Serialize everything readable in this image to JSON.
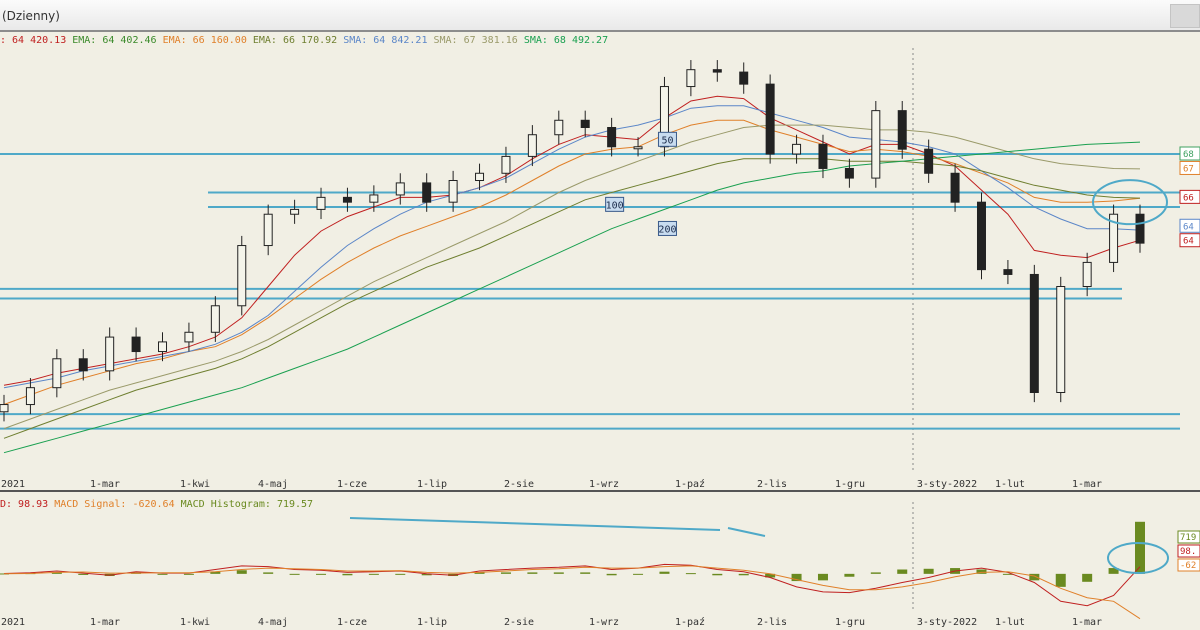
{
  "window": {
    "title": "(Dzienny)"
  },
  "legend_main": [
    {
      "text": ": 64 420.13",
      "color": "#c02020"
    },
    {
      "text": "EMA: 64 402.46",
      "color": "#3a8a2a"
    },
    {
      "text": "EMA: 66 160.00",
      "color": "#e0802a"
    },
    {
      "text": "EMA: 66 170.92",
      "color": "#6f7f30"
    },
    {
      "text": "SMA: 64 842.21",
      "color": "#5b86c8"
    },
    {
      "text": "SMA: 67 381.16",
      "color": "#9a9a6a"
    },
    {
      "text": "SMA: 68 492.27",
      "color": "#1aa050"
    }
  ],
  "legend_macd": [
    {
      "text": "D: 98.93",
      "color": "#c02020"
    },
    {
      "text": "MACD Signal: -620.64",
      "color": "#e0802a"
    },
    {
      "text": "MACD Histogram: 719.57",
      "color": "#6a8a20"
    }
  ],
  "chart_data": {
    "type": "candlestick",
    "time_labels": [
      "-2021",
      "1-mar",
      "1-kwi",
      "4-maj",
      "1-cze",
      "1-lip",
      "2-sie",
      "1-wrz",
      "1-paź",
      "2-lis",
      "1-gru",
      "3-sty-2022",
      "1-lut",
      "1-mar"
    ],
    "price_series": [
      {
        "name": "close",
        "color": "#222222",
        "values": [
          57600,
          58300,
          59500,
          59000,
          60400,
          59800,
          60200,
          60600,
          61700,
          64200,
          65500,
          65700,
          66200,
          66000,
          66300,
          66800,
          66000,
          66900,
          67200,
          67900,
          68800,
          69400,
          69100,
          68300,
          68300,
          70800,
          71500,
          71400,
          70900,
          68000,
          68400,
          67400,
          67000,
          69800,
          68200,
          67200,
          66000,
          63200,
          63000,
          58100,
          62500,
          63500,
          65500,
          64300
        ]
      },
      {
        "name": "EMA 20",
        "color": "#c02020",
        "values": [
          58400,
          58600,
          58900,
          59100,
          59300,
          59500,
          59700,
          60000,
          60400,
          61200,
          62500,
          63800,
          64800,
          65400,
          65800,
          66200,
          66200,
          66300,
          66600,
          67100,
          67800,
          68400,
          68800,
          68700,
          68600,
          69500,
          70200,
          70400,
          70300,
          69500,
          69000,
          68500,
          68000,
          68400,
          68400,
          68000,
          67500,
          66500,
          65500,
          64000,
          63800,
          63700,
          64100,
          64420
        ]
      },
      {
        "name": "EMA 50",
        "color": "#e0802a",
        "values": [
          57600,
          58000,
          58400,
          58700,
          59000,
          59300,
          59500,
          59800,
          60000,
          60500,
          61200,
          62000,
          62800,
          63500,
          64100,
          64600,
          65000,
          65400,
          65800,
          66300,
          66900,
          67500,
          68000,
          68200,
          68300,
          68800,
          69200,
          69400,
          69400,
          69000,
          68700,
          68400,
          68100,
          68200,
          68100,
          67900,
          67600,
          67200,
          66800,
          66200,
          66000,
          66000,
          66050,
          66160
        ]
      },
      {
        "name": "SMA 50",
        "color": "#5b86c8",
        "values": [
          58300,
          58500,
          58700,
          59000,
          59200,
          59400,
          59600,
          59800,
          60100,
          60600,
          61300,
          62300,
          63300,
          64200,
          64900,
          65500,
          66000,
          66300,
          66600,
          67000,
          67600,
          68200,
          68700,
          69000,
          69200,
          69500,
          69900,
          70000,
          70000,
          69700,
          69400,
          69100,
          68700,
          68600,
          68500,
          68300,
          68000,
          67300,
          66600,
          65800,
          65300,
          64900,
          64900,
          64842
        ]
      },
      {
        "name": "EMA 100",
        "color": "#6f7f30",
        "values": [
          56200,
          56600,
          57000,
          57400,
          57800,
          58200,
          58500,
          58800,
          59100,
          59500,
          60000,
          60600,
          61200,
          61800,
          62300,
          62800,
          63300,
          63700,
          64100,
          64600,
          65100,
          65600,
          66100,
          66400,
          66700,
          67000,
          67300,
          67600,
          67800,
          67800,
          67800,
          67800,
          67700,
          67700,
          67700,
          67600,
          67500,
          67300,
          67000,
          66700,
          66500,
          66300,
          66200,
          66171
        ]
      },
      {
        "name": "SMA 100",
        "color": "#9a9a6a",
        "values": [
          56600,
          57000,
          57400,
          57800,
          58200,
          58500,
          58800,
          59100,
          59400,
          59800,
          60300,
          60900,
          61500,
          62100,
          62700,
          63200,
          63700,
          64200,
          64700,
          65200,
          65800,
          66400,
          66900,
          67300,
          67700,
          68100,
          68500,
          68800,
          69100,
          69200,
          69200,
          69200,
          69100,
          69000,
          69000,
          68900,
          68700,
          68400,
          68100,
          67800,
          67600,
          67500,
          67400,
          67381
        ]
      },
      {
        "name": "SMA 200",
        "color": "#1aa050",
        "values": [
          55600,
          55900,
          56200,
          56500,
          56800,
          57100,
          57400,
          57700,
          58000,
          58300,
          58700,
          59100,
          59500,
          59900,
          60400,
          60900,
          61400,
          61900,
          62400,
          62900,
          63400,
          63900,
          64400,
          64900,
          65300,
          65700,
          66100,
          66500,
          66800,
          67000,
          67200,
          67300,
          67500,
          67600,
          67700,
          67800,
          67900,
          68000,
          68100,
          68200,
          68300,
          68400,
          68450,
          68492
        ]
      }
    ],
    "horizontal_levels": [
      68000,
      66400,
      65800,
      62400,
      62000,
      57200,
      56600
    ],
    "annotations": [
      "50",
      "100",
      "200"
    ],
    "right_labels": [
      "68",
      "67",
      "66",
      "64",
      "64"
    ],
    "ylim": [
      54800,
      72400
    ],
    "macd": {
      "macd_line": [
        5,
        15,
        40,
        10,
        -20,
        30,
        10,
        10,
        60,
        110,
        100,
        60,
        50,
        20,
        30,
        40,
        0,
        -20,
        40,
        60,
        80,
        90,
        110,
        60,
        80,
        130,
        120,
        60,
        30,
        -50,
        -180,
        -250,
        -260,
        -200,
        -120,
        -50,
        40,
        80,
        20,
        -120,
        -380,
        -440,
        -300,
        99
      ],
      "signal": [
        0,
        5,
        20,
        25,
        10,
        10,
        15,
        15,
        30,
        60,
        80,
        70,
        60,
        40,
        40,
        45,
        20,
        10,
        20,
        40,
        60,
        70,
        90,
        80,
        80,
        100,
        110,
        80,
        50,
        0,
        -80,
        -160,
        -220,
        -220,
        -180,
        -120,
        -40,
        20,
        30,
        -30,
        -200,
        -330,
        -380,
        -621
      ],
      "histogram": [
        5,
        10,
        20,
        -15,
        -30,
        20,
        -5,
        -5,
        30,
        50,
        20,
        -10,
        -10,
        -20,
        -10,
        -5,
        -20,
        -30,
        20,
        20,
        20,
        20,
        20,
        -20,
        0,
        30,
        10,
        -20,
        -20,
        -50,
        -100,
        -90,
        -40,
        20,
        60,
        70,
        80,
        60,
        -10,
        -90,
        -180,
        -110,
        80,
        720
      ],
      "right_labels": [
        "719",
        "98.",
        "-62"
      ],
      "ylim": [
        -500,
        800
      ]
    }
  }
}
